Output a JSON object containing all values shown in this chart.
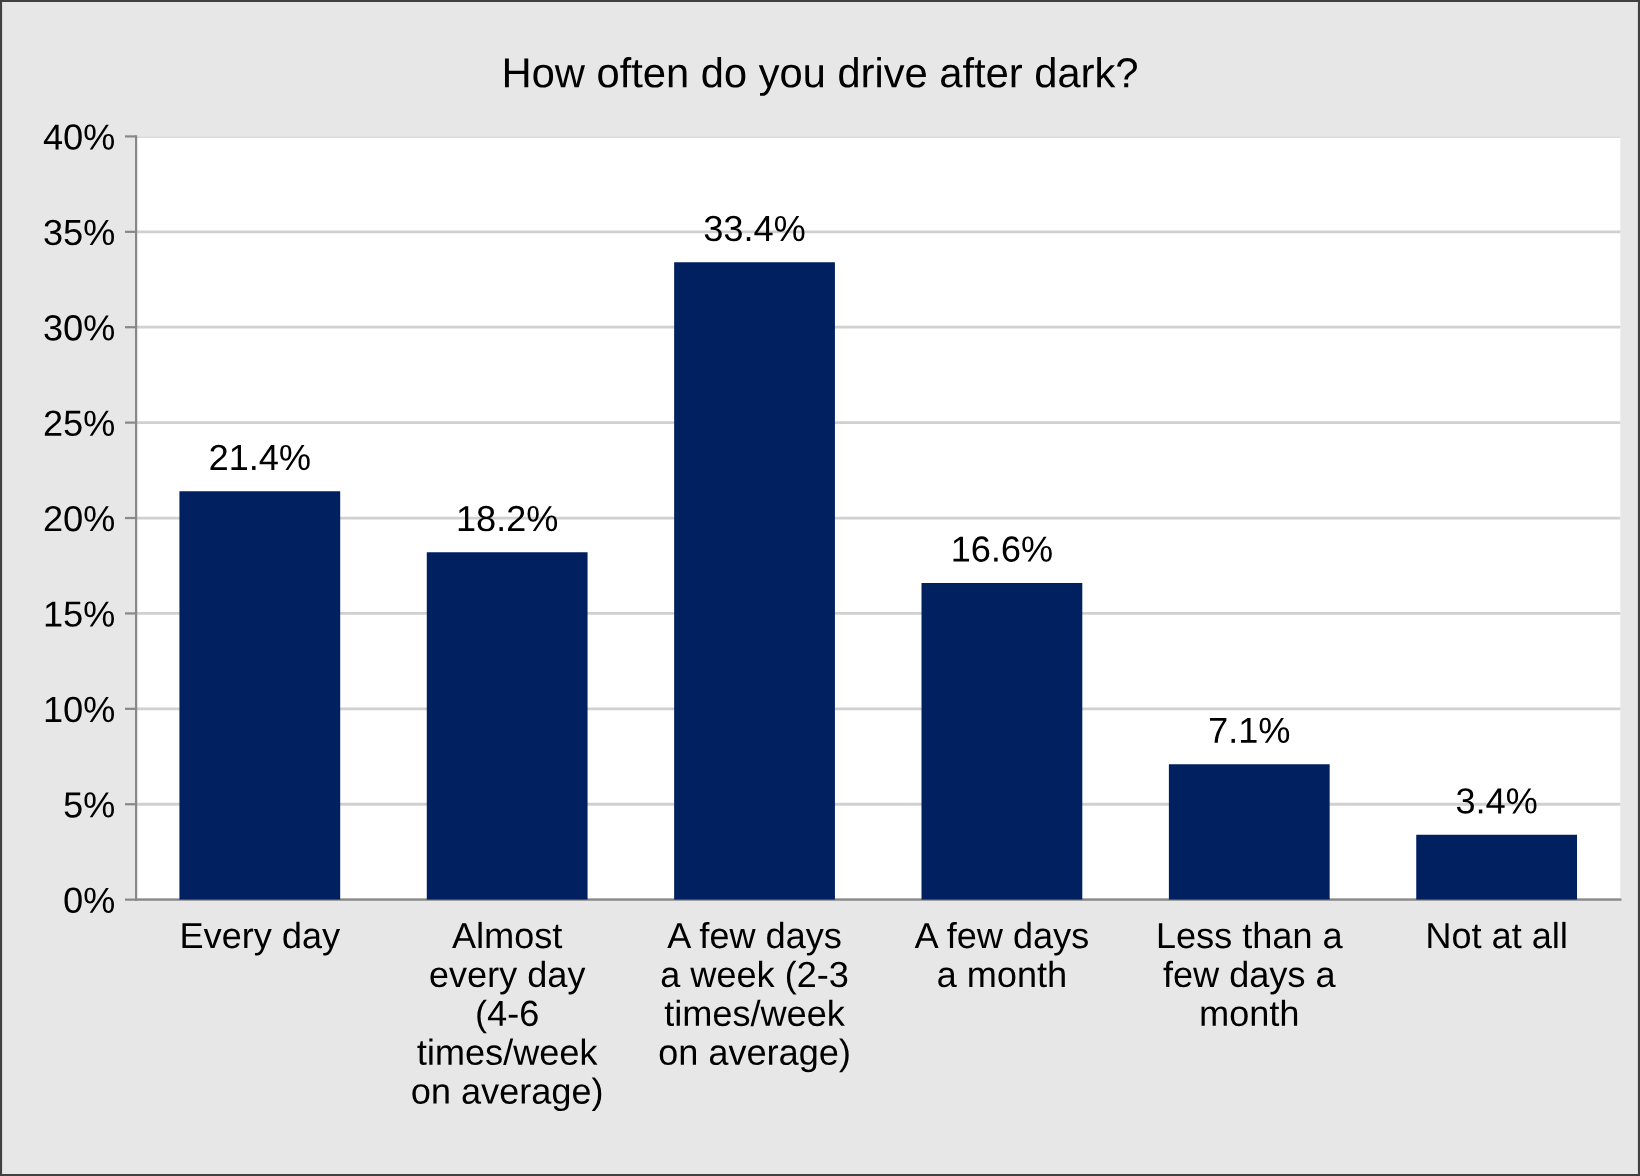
{
  "chart_data": {
    "type": "bar",
    "title": "How often do you drive after dark?",
    "categories": [
      "Every day",
      "Almost\nevery day\n(4-6\ntimes/week\non average)",
      "A few days\na week (2-3\ntimes/week\non average)",
      "A few days\na month",
      "Less than a\nfew days a\nmonth",
      "Not at all"
    ],
    "values": [
      21.4,
      18.2,
      33.4,
      16.6,
      7.1,
      3.4
    ],
    "value_labels": [
      "21.4%",
      "18.2%",
      "33.4%",
      "16.6%",
      "7.1%",
      "3.4%"
    ],
    "color": "#002060",
    "ylim": [
      0,
      40
    ],
    "yticks": [
      {
        "value": 0,
        "label": "0%"
      },
      {
        "value": 5,
        "label": "5%"
      },
      {
        "value": 10,
        "label": "10%"
      },
      {
        "value": 15,
        "label": "15%"
      },
      {
        "value": 20,
        "label": "20%"
      },
      {
        "value": 25,
        "label": "25%"
      },
      {
        "value": 30,
        "label": "30%"
      },
      {
        "value": 35,
        "label": "35%"
      },
      {
        "value": 40,
        "label": "40%"
      }
    ],
    "grid": "y",
    "legend": false
  }
}
